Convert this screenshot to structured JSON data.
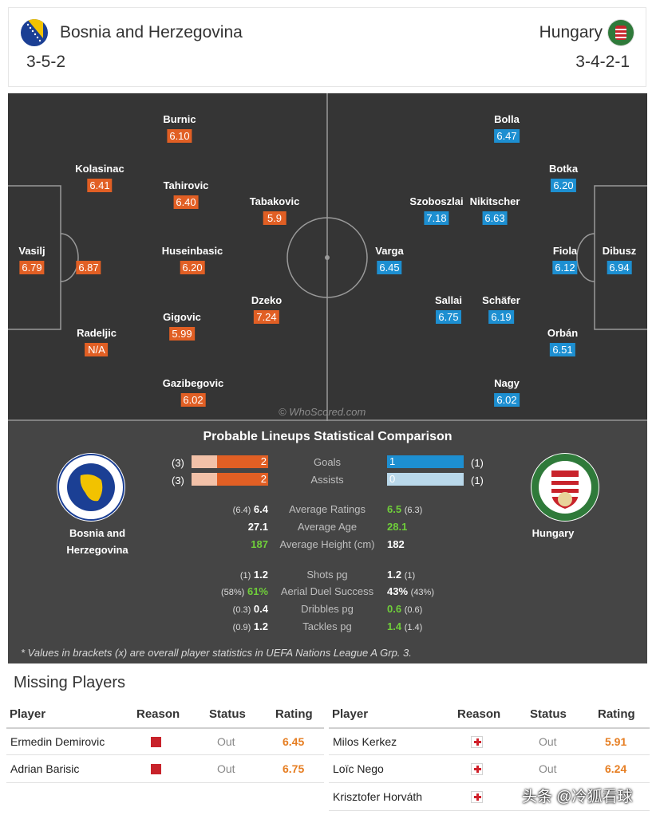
{
  "header": {
    "home_team": "Bosnia and Herzegovina",
    "away_team": "Hungary",
    "home_formation": "3-5-2",
    "away_formation": "3-4-2-1"
  },
  "pitch": {
    "watermark": "© WhoScored.com",
    "home_players": [
      {
        "name": "Vasilj",
        "rating": "6.79"
      },
      {
        "name": "",
        "rating": "6.87"
      },
      {
        "name": "Kolasinac",
        "rating": "6.41"
      },
      {
        "name": "Radeljic",
        "rating": "N/A"
      },
      {
        "name": "Burnic",
        "rating": "6.10"
      },
      {
        "name": "Tahirovic",
        "rating": "6.40"
      },
      {
        "name": "Huseinbasic",
        "rating": "6.20"
      },
      {
        "name": "Gigovic",
        "rating": "5.99"
      },
      {
        "name": "Gazibegovic",
        "rating": "6.02"
      },
      {
        "name": "Tabakovic",
        "rating": "5.9"
      },
      {
        "name": "Dzeko",
        "rating": "7.24"
      }
    ],
    "away_players": [
      {
        "name": "Dibusz",
        "rating": "6.94"
      },
      {
        "name": "Botka",
        "rating": "6.20"
      },
      {
        "name": "Fiola",
        "rating": "6.12"
      },
      {
        "name": "Orbán",
        "rating": "6.51"
      },
      {
        "name": "Bolla",
        "rating": "6.47"
      },
      {
        "name": "Nikitscher",
        "rating": "6.63"
      },
      {
        "name": "Schäfer",
        "rating": "6.19"
      },
      {
        "name": "Nagy",
        "rating": "6.02"
      },
      {
        "name": "Szoboszlai",
        "rating": "7.18"
      },
      {
        "name": "Sallai",
        "rating": "6.75"
      },
      {
        "name": "Varga",
        "rating": "6.45"
      }
    ]
  },
  "comparison": {
    "title": "Probable Lineups Statistical Comparison",
    "home_label_1": "Bosnia and",
    "home_label_2": "Herzegovina",
    "away_label": "Hungary",
    "goals": {
      "label": "Goals",
      "home": "2",
      "home_overall": "(3)",
      "away": "1",
      "away_overall": "(1)",
      "home_fill": 0.67,
      "away_fill": 1.0
    },
    "assists": {
      "label": "Assists",
      "home": "2",
      "home_overall": "(3)",
      "away": "0",
      "away_overall": "(1)",
      "home_fill": 0.67,
      "away_fill": 0.0
    },
    "ratings": {
      "label": "Average Ratings",
      "home": "6.4",
      "home_overall": "(6.4)",
      "away": "6.5",
      "away_overall": "(6.3)"
    },
    "age": {
      "label": "Average Age",
      "home": "27.1",
      "away": "28.1"
    },
    "height": {
      "label": "Average Height (cm)",
      "home": "187",
      "away": "182"
    },
    "shots": {
      "label": "Shots pg",
      "home": "1.2",
      "home_overall": "(1)",
      "away": "1.2",
      "away_overall": "(1)"
    },
    "aerial": {
      "label": "Aerial Duel Success",
      "home": "61%",
      "home_overall": "(58%)",
      "away": "43%",
      "away_overall": "(43%)"
    },
    "dribbles": {
      "label": "Dribbles pg",
      "home": "0.4",
      "home_overall": "(0.3)",
      "away": "0.6",
      "away_overall": "(0.6)"
    },
    "tackles": {
      "label": "Tackles pg",
      "home": "1.2",
      "home_overall": "(0.9)",
      "away": "1.4",
      "away_overall": "(1.4)"
    },
    "note": "* Values in brackets (x) are overall player statistics in UEFA Nations League A Grp. 3."
  },
  "missing": {
    "title": "Missing Players",
    "headers": {
      "player": "Player",
      "reason": "Reason",
      "status": "Status",
      "rating": "Rating"
    },
    "home": [
      {
        "player": "Ermedin Demirovic",
        "reason": "red-card",
        "status": "Out",
        "rating": "6.45"
      },
      {
        "player": "Adrian Barisic",
        "reason": "red-card",
        "status": "Out",
        "rating": "6.75"
      }
    ],
    "away": [
      {
        "player": "Milos Kerkez",
        "reason": "injury",
        "status": "Out",
        "rating": "5.91"
      },
      {
        "player": "Loïc Nego",
        "reason": "injury",
        "status": "Out",
        "rating": "6.24"
      },
      {
        "player": "Krisztofer Horváth",
        "reason": "injury",
        "status": "",
        "rating": ""
      }
    ]
  },
  "site_watermark": "头条 @冷狐看球",
  "colors": {
    "home": "#e15f24",
    "away": "#1d8fd1",
    "pitch": "#353535",
    "panel": "#454545"
  }
}
